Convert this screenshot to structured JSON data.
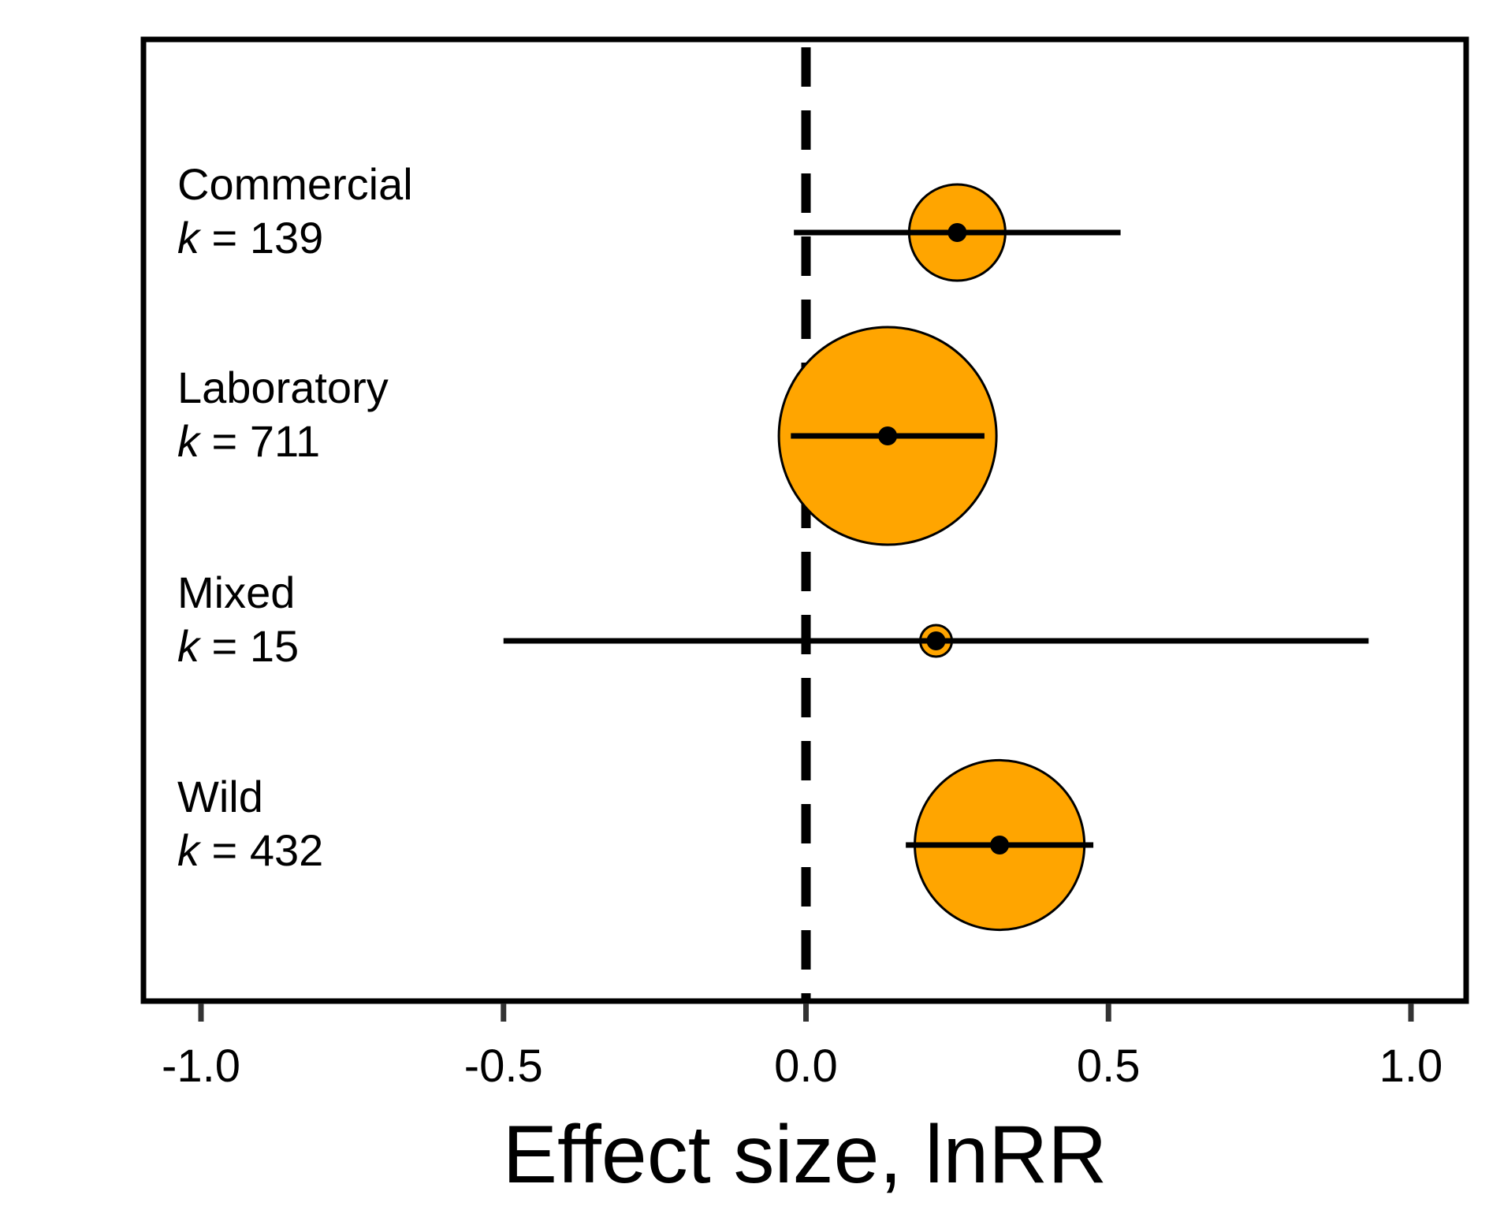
{
  "chart_data": {
    "type": "scatter",
    "subtype": "forest-plot",
    "title": "",
    "xlabel": "Effect size, lnRR",
    "ylabel": "",
    "xlim": [
      -1.1,
      1.1
    ],
    "xticks": [
      -1.0,
      -0.5,
      0.0,
      0.5,
      1.0
    ],
    "xtick_labels": [
      "-1.0",
      "-0.5",
      "0.0",
      "0.5",
      "1.0"
    ],
    "reference_line": {
      "x": 0,
      "style": "dashed"
    },
    "grid": false,
    "legend": "none",
    "marker_color": "#FFA500",
    "line_color": "#000000",
    "k_prefix": "k",
    "k_equals": " = ",
    "categories": [
      {
        "name": "Commercial",
        "k": 139,
        "estimate": 0.25,
        "ci_low": -0.02,
        "ci_high": 0.52
      },
      {
        "name": "Laboratory",
        "k": 711,
        "estimate": 0.135,
        "ci_low": -0.025,
        "ci_high": 0.295
      },
      {
        "name": "Mixed",
        "k": 15,
        "estimate": 0.215,
        "ci_low": -0.5,
        "ci_high": 0.93
      },
      {
        "name": "Wild",
        "k": 432,
        "estimate": 0.32,
        "ci_low": 0.165,
        "ci_high": 0.475
      }
    ]
  }
}
